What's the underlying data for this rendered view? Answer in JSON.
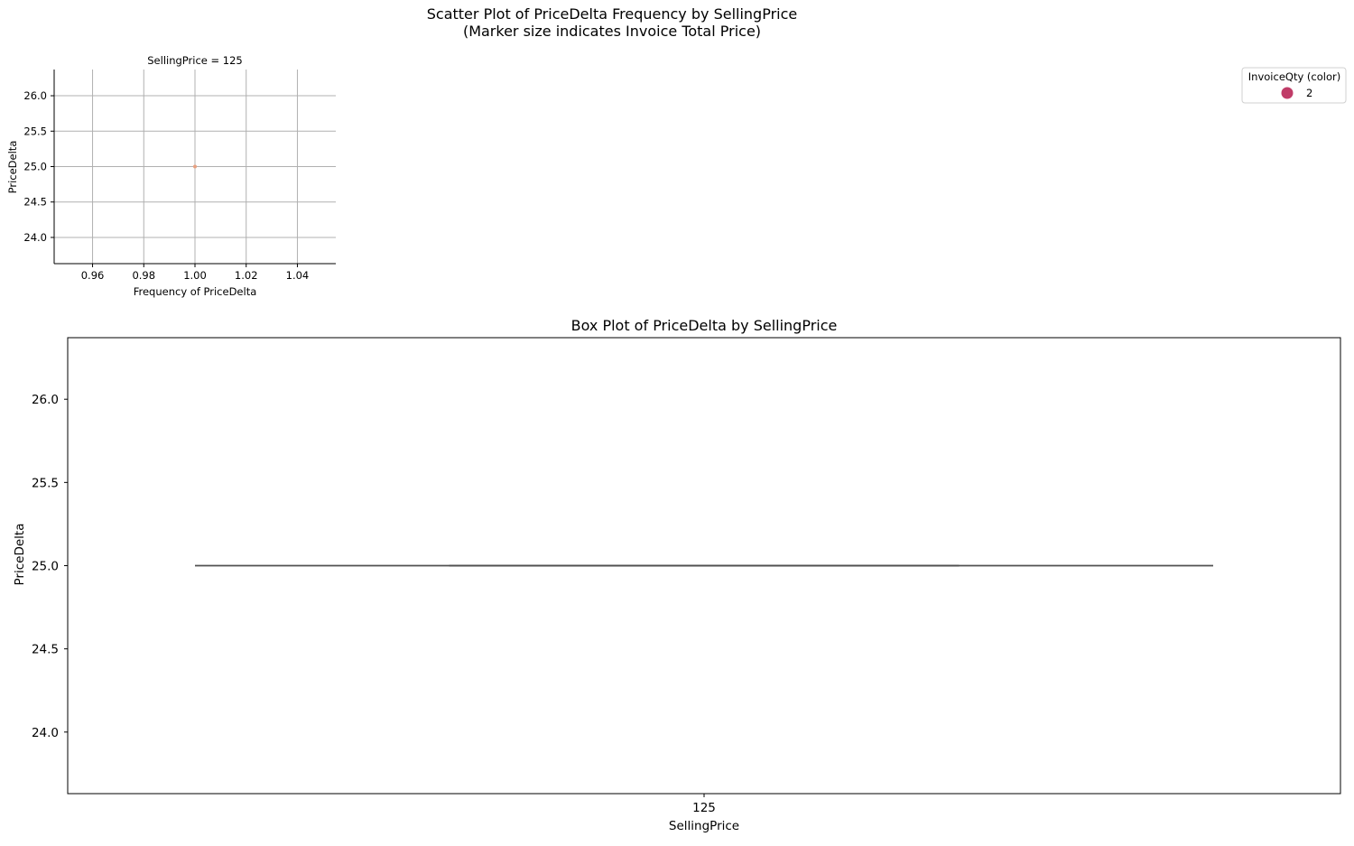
{
  "figure": {
    "title_line1": "Scatter Plot of PriceDelta Frequency by SellingPrice",
    "title_line2": "(Marker size indicates Invoice Total Price)"
  },
  "chart_data": [
    {
      "type": "scatter",
      "facet_title": "SellingPrice = 125",
      "xlabel": "Frequency of PriceDelta",
      "ylabel": "PriceDelta",
      "xlim": [
        0.945,
        1.055
      ],
      "ylim": [
        23.63,
        26.37
      ],
      "xticks": [
        0.96,
        0.98,
        1.0,
        1.02,
        1.04
      ],
      "xtick_labels": [
        "0.96",
        "0.98",
        "1.00",
        "1.02",
        "1.04"
      ],
      "yticks": [
        24.0,
        24.5,
        25.0,
        25.5,
        26.0
      ],
      "ytick_labels": [
        "24.0",
        "24.5",
        "25.0",
        "25.5",
        "26.0"
      ],
      "grid": true,
      "points": [
        {
          "x": 1.0,
          "y": 25.0,
          "invoice_qty": 2,
          "color": "#e8a080"
        }
      ],
      "legend": {
        "title": "InvoiceQty (color)",
        "placement": "upper-right",
        "entries": [
          {
            "label": "2",
            "color": "#c03c68"
          }
        ]
      }
    },
    {
      "type": "box",
      "title": "Box Plot of PriceDelta by SellingPrice",
      "xlabel": "SellingPrice",
      "ylabel": "PriceDelta",
      "categories": [
        "125"
      ],
      "ylim": [
        23.63,
        26.37
      ],
      "yticks": [
        24.0,
        24.5,
        25.0,
        25.5,
        26.0
      ],
      "ytick_labels": [
        "24.0",
        "24.5",
        "25.0",
        "25.5",
        "26.0"
      ],
      "boxes": [
        {
          "category": "125",
          "min": 25.0,
          "q1": 25.0,
          "median": 25.0,
          "q3": 25.0,
          "max": 25.0
        }
      ],
      "color": "#505050"
    }
  ]
}
